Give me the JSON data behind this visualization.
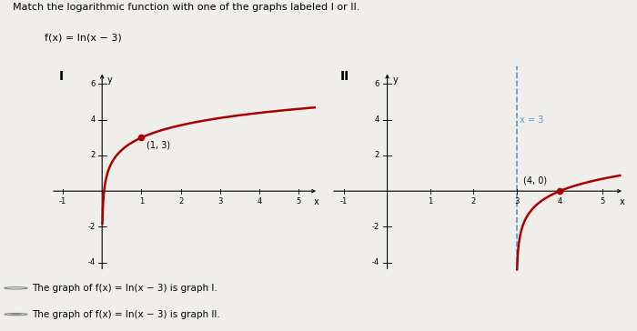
{
  "title": "Match the logarithmic function with one of the graphs labeled I or II.",
  "function_label": "f(x) = ln(x − 3)",
  "graph1_label": "I",
  "graph2_label": "II",
  "graph1_point": [
    1,
    3
  ],
  "graph1_point_label": "(1, 3)",
  "graph2_point": [
    4,
    0
  ],
  "graph2_point_label": "(4, 0)",
  "graph2_asymptote": 3,
  "graph2_asymptote_label": "x = 3",
  "curve_color": "#aa0000",
  "asymptote_color": "#5599cc",
  "point_color": "#aa0000",
  "bg_color": "#f0eeeb",
  "plot_bg": "#f0eeeb",
  "xlim": [
    -1.3,
    5.5
  ],
  "ylim": [
    -4.5,
    7.0
  ],
  "xtick_vals": [
    -1,
    1,
    2,
    3,
    4,
    5
  ],
  "ytick_vals": [
    6,
    4,
    2,
    -2,
    -4
  ],
  "option1": "The graph of f(x) = ln(x − 3) is graph I.",
  "option2": "The graph of f(x) = ln(x − 3) is graph II."
}
